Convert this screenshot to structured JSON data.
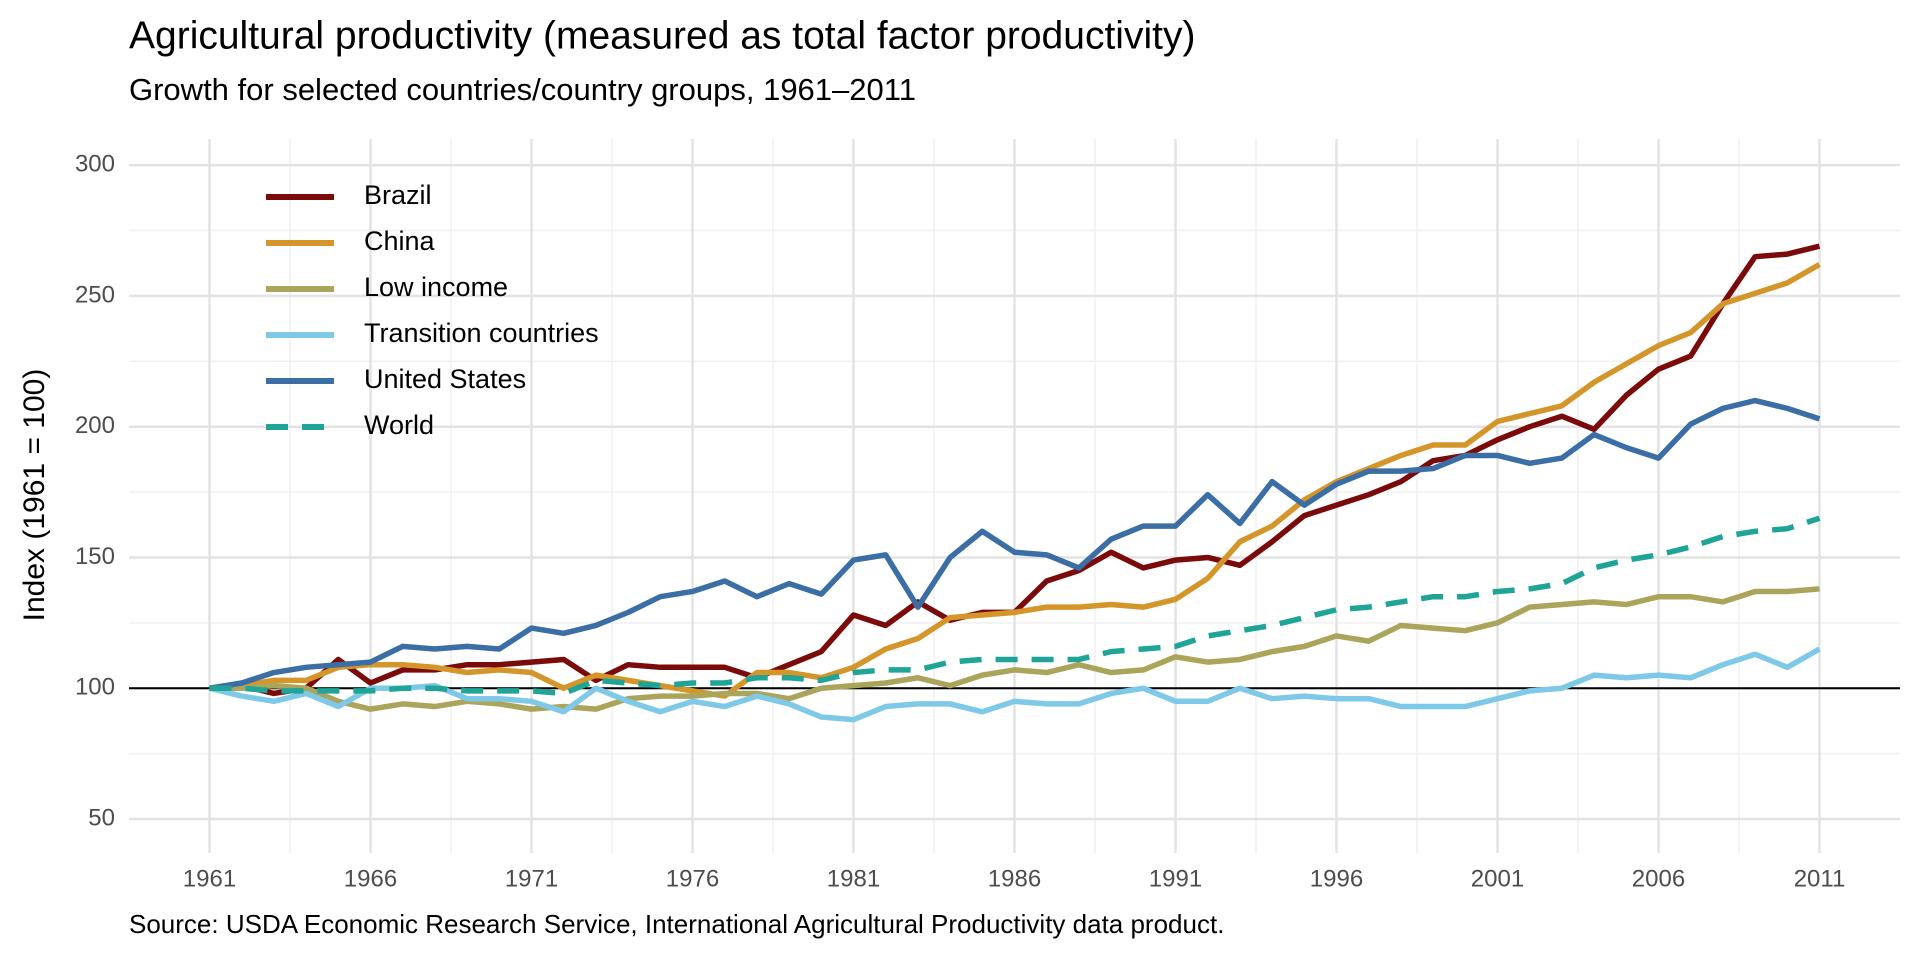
{
  "chart_data": {
    "type": "line",
    "title": "Agricultural productivity (measured as total factor productivity)",
    "subtitle": "Growth for selected countries/country groups, 1961–2011",
    "y_label": "Index (1961 = 100)",
    "source": "Source: USDA Economic Research Service, International Agricultural Productivity data product.",
    "x": [
      1961,
      1962,
      1963,
      1964,
      1965,
      1966,
      1967,
      1968,
      1969,
      1970,
      1971,
      1972,
      1973,
      1974,
      1975,
      1976,
      1977,
      1978,
      1979,
      1980,
      1981,
      1982,
      1983,
      1984,
      1985,
      1986,
      1987,
      1988,
      1989,
      1990,
      1991,
      1992,
      1993,
      1994,
      1995,
      1996,
      1997,
      1998,
      1999,
      2000,
      2001,
      2002,
      2003,
      2004,
      2005,
      2006,
      2007,
      2008,
      2009,
      2010,
      2011
    ],
    "series": [
      {
        "name": "Brazil",
        "color": "#7b0a0a",
        "dashed": false,
        "values": [
          100,
          101,
          98,
          100,
          111,
          102,
          107,
          107,
          109,
          109,
          110,
          111,
          103,
          109,
          108,
          108,
          108,
          104,
          109,
          114,
          128,
          124,
          133,
          126,
          129,
          129,
          141,
          145,
          152,
          146,
          149,
          150,
          147,
          156,
          166,
          170,
          174,
          179,
          187,
          189,
          195,
          200,
          204,
          199,
          212,
          222,
          227,
          247,
          265,
          266,
          269
        ]
      },
      {
        "name": "China",
        "color": "#d4952a",
        "dashed": false,
        "values": [
          100,
          101,
          103,
          103,
          108,
          109,
          109,
          108,
          106,
          107,
          106,
          100,
          105,
          103,
          101,
          99,
          97,
          106,
          106,
          104,
          108,
          115,
          119,
          127,
          128,
          129,
          131,
          131,
          132,
          131,
          134,
          142,
          156,
          162,
          172,
          179,
          184,
          189,
          193,
          193,
          202,
          205,
          208,
          217,
          224,
          231,
          236,
          247,
          251,
          255,
          262
        ]
      },
      {
        "name": "Low income",
        "color": "#aba55c",
        "dashed": false,
        "values": [
          100,
          100,
          101,
          100,
          95,
          92,
          94,
          93,
          95,
          94,
          92,
          93,
          92,
          96,
          97,
          97,
          98,
          98,
          96,
          100,
          101,
          102,
          104,
          101,
          105,
          107,
          106,
          109,
          106,
          107,
          112,
          110,
          111,
          114,
          116,
          120,
          118,
          124,
          123,
          122,
          125,
          131,
          132,
          133,
          132,
          135,
          135,
          133,
          137,
          137,
          138
        ]
      },
      {
        "name": "Transition countries",
        "color": "#7ec8e8",
        "dashed": false,
        "values": [
          100,
          97,
          95,
          98,
          93,
          100,
          100,
          101,
          96,
          96,
          95,
          91,
          100,
          95,
          91,
          95,
          93,
          97,
          94,
          89,
          88,
          93,
          94,
          94,
          91,
          95,
          94,
          94,
          98,
          100,
          95,
          95,
          100,
          96,
          97,
          96,
          96,
          93,
          93,
          93,
          96,
          99,
          100,
          105,
          104,
          105,
          104,
          109,
          113,
          108,
          115
        ]
      },
      {
        "name": "United States",
        "color": "#3a6ea5",
        "dashed": false,
        "values": [
          100,
          102,
          106,
          108,
          109,
          110,
          116,
          115,
          116,
          115,
          123,
          121,
          124,
          129,
          135,
          137,
          141,
          135,
          140,
          136,
          149,
          151,
          131,
          150,
          160,
          152,
          151,
          146,
          157,
          162,
          162,
          174,
          163,
          179,
          170,
          178,
          183,
          183,
          184,
          189,
          189,
          186,
          188,
          197,
          192,
          188,
          201,
          207,
          210,
          207,
          203
        ]
      },
      {
        "name": "World",
        "color": "#1fa497",
        "dashed": true,
        "values": [
          100,
          100,
          99,
          99,
          99,
          99,
          100,
          100,
          99,
          99,
          99,
          98,
          103,
          102,
          101,
          102,
          102,
          104,
          104,
          103,
          106,
          107,
          107,
          110,
          111,
          111,
          111,
          111,
          114,
          115,
          116,
          120,
          122,
          124,
          127,
          130,
          131,
          133,
          135,
          135,
          137,
          138,
          140,
          146,
          149,
          151,
          154,
          158,
          160,
          161,
          165
        ]
      }
    ],
    "xlim": [
      1958.5,
      2013.5
    ],
    "xticks": [
      1961,
      1966,
      1971,
      1976,
      1981,
      1986,
      1991,
      1996,
      2001,
      2006,
      2011
    ],
    "ylim": [
      37,
      310
    ],
    "yticks": [
      50,
      100,
      150,
      200,
      250,
      300
    ],
    "hline": 100,
    "grid": true,
    "legend": "top-left"
  }
}
